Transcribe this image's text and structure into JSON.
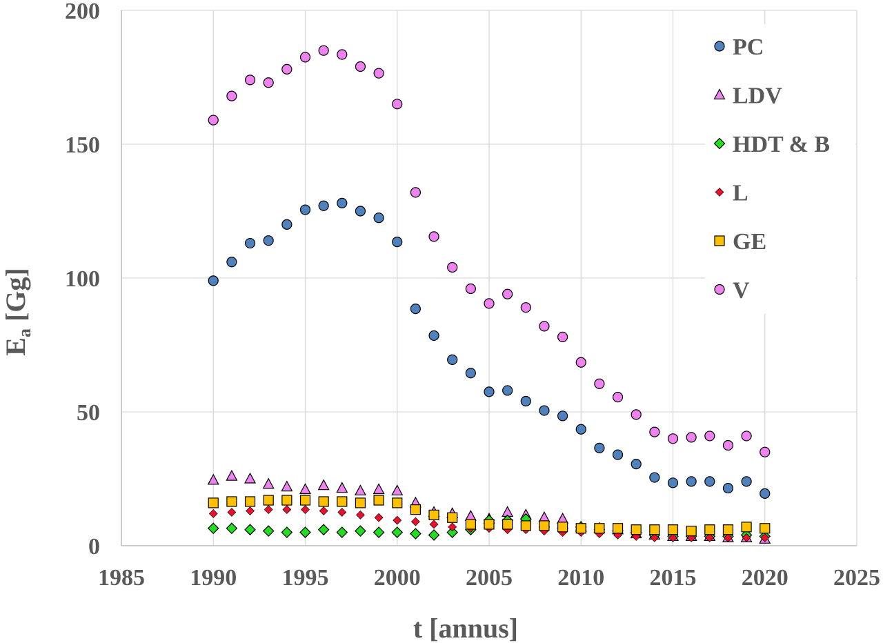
{
  "chart_data": {
    "type": "scatter",
    "title": "",
    "xlabel": "t [annus]",
    "ylabel_main": "E",
    "ylabel_sub": "a",
    "ylabel_unit": " [Gg]",
    "xlim": [
      1985,
      2025
    ],
    "ylim": [
      0,
      200
    ],
    "xticks": [
      "1985",
      "1990",
      "1995",
      "2000",
      "2005",
      "2010",
      "2015",
      "2020",
      "2025"
    ],
    "yticks": [
      "0",
      "50",
      "100",
      "150",
      "200"
    ],
    "grid": true,
    "legend_position": "top-right",
    "x": [
      1990,
      1991,
      1992,
      1993,
      1994,
      1995,
      1996,
      1997,
      1998,
      1999,
      2000,
      2001,
      2002,
      2003,
      2004,
      2005,
      2006,
      2007,
      2008,
      2009,
      2010,
      2011,
      2012,
      2013,
      2014,
      2015,
      2016,
      2017,
      2018,
      2019,
      2020
    ],
    "series": [
      {
        "name": "PC",
        "marker": "circle",
        "color": "#4f81bd",
        "values": [
          99,
          106,
          113,
          114,
          120,
          125.5,
          127,
          128,
          125,
          122.5,
          113.5,
          88.5,
          78.5,
          69.5,
          64.5,
          57.5,
          58,
          54,
          50.5,
          48.5,
          43.5,
          36.5,
          34,
          30.5,
          25.5,
          23.5,
          24,
          24,
          21.5,
          24,
          19.5
        ]
      },
      {
        "name": "LDV",
        "marker": "triangle",
        "color": "#ee82ee",
        "values": [
          24.5,
          26,
          25,
          23,
          22,
          21,
          22.5,
          21.5,
          20.5,
          21,
          20.5,
          16,
          12.5,
          12,
          11,
          10,
          12.5,
          11.5,
          10.5,
          10,
          7,
          6.5,
          6,
          4.5,
          4,
          3.5,
          3.5,
          3.5,
          3,
          3,
          2.5
        ]
      },
      {
        "name": "HDT & B",
        "marker": "diamond",
        "color": "#22dd22",
        "values": [
          6.5,
          6.5,
          6,
          5.5,
          5,
          5,
          6,
          5,
          5.5,
          5,
          5,
          4.5,
          4,
          5,
          6,
          9.5,
          9.5,
          10,
          7,
          6.5,
          7,
          6,
          5.5,
          5,
          4,
          3.5,
          3.5,
          3.5,
          3.5,
          4,
          3.5
        ]
      },
      {
        "name": "L",
        "marker": "diamond-small",
        "color": "#e8112d",
        "values": [
          12,
          12.5,
          13,
          13.5,
          13.5,
          13.5,
          13,
          12.5,
          11.5,
          10.5,
          9.5,
          9,
          8,
          7,
          6.5,
          6.5,
          6,
          6,
          5.5,
          5,
          5,
          4.5,
          4,
          3.5,
          3,
          3,
          3,
          3,
          3,
          3,
          3
        ]
      },
      {
        "name": "GE",
        "marker": "square",
        "color": "#ffc000",
        "values": [
          16,
          16.5,
          16.5,
          17,
          17,
          17,
          16.5,
          16.5,
          16,
          17,
          16,
          13.5,
          11.5,
          10.5,
          8,
          8,
          8,
          7.5,
          7.5,
          7,
          6.5,
          6.5,
          6.5,
          6,
          6,
          6,
          5.5,
          6,
          6,
          7,
          6.5
        ]
      },
      {
        "name": "V",
        "marker": "circle",
        "color": "#ee82ee",
        "values": [
          159,
          168,
          174,
          173,
          178,
          182.5,
          185,
          183.5,
          179,
          176.5,
          165,
          132,
          115.5,
          104,
          96,
          90.5,
          94,
          89,
          82,
          78,
          68.5,
          60.5,
          55.5,
          49,
          42.5,
          40,
          40.5,
          41,
          37.5,
          41,
          35
        ]
      }
    ]
  }
}
